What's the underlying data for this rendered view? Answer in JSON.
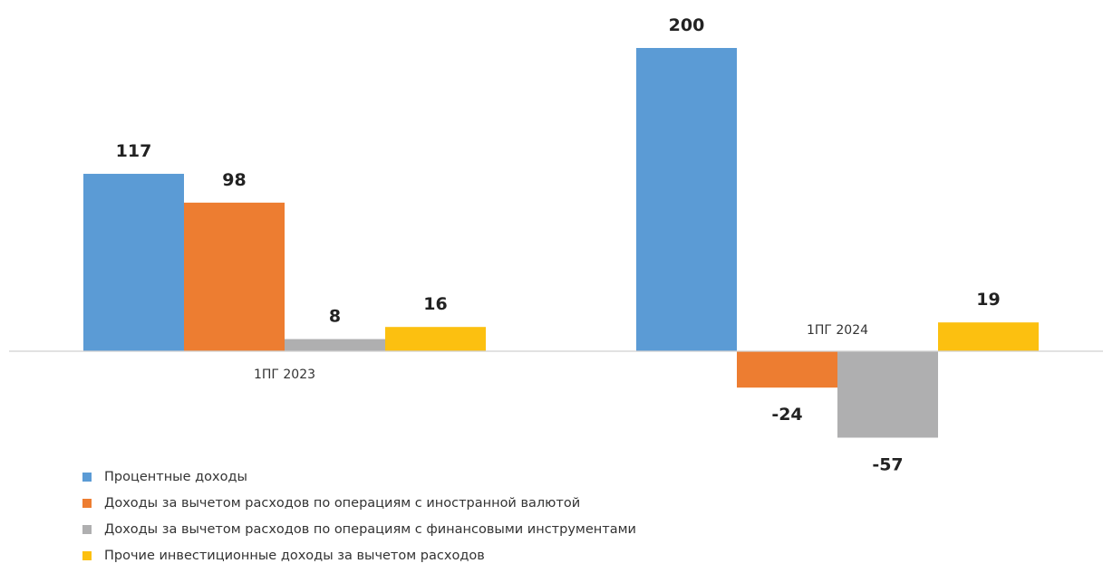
{
  "chart_data": {
    "type": "bar",
    "categories": [
      "1ПГ 2023",
      "1ПГ 2024"
    ],
    "series": [
      {
        "name": "Процентные доходы",
        "color": "#5b9bd5",
        "values": [
          117,
          200
        ]
      },
      {
        "name": "Доходы за вычетом расходов по операциям с иностранной валютой",
        "color": "#ed7d31",
        "values": [
          98,
          -24
        ]
      },
      {
        "name": "Доходы за вычетом расходов по операциям с финансовыми инструментами",
        "color": "#afafb0",
        "values": [
          8,
          -57
        ]
      },
      {
        "name": "Прочие инвестиционные доходы за вычетом расходов",
        "color": "#fcc010",
        "values": [
          16,
          19
        ]
      }
    ],
    "data_labels": [
      [
        "117",
        "200"
      ],
      [
        "98",
        "-24"
      ],
      [
        "8",
        "-57"
      ],
      [
        "16",
        "19"
      ]
    ],
    "legend_position": "bottom-left",
    "grid": false,
    "title": "",
    "xlabel": "",
    "ylabel": ""
  }
}
